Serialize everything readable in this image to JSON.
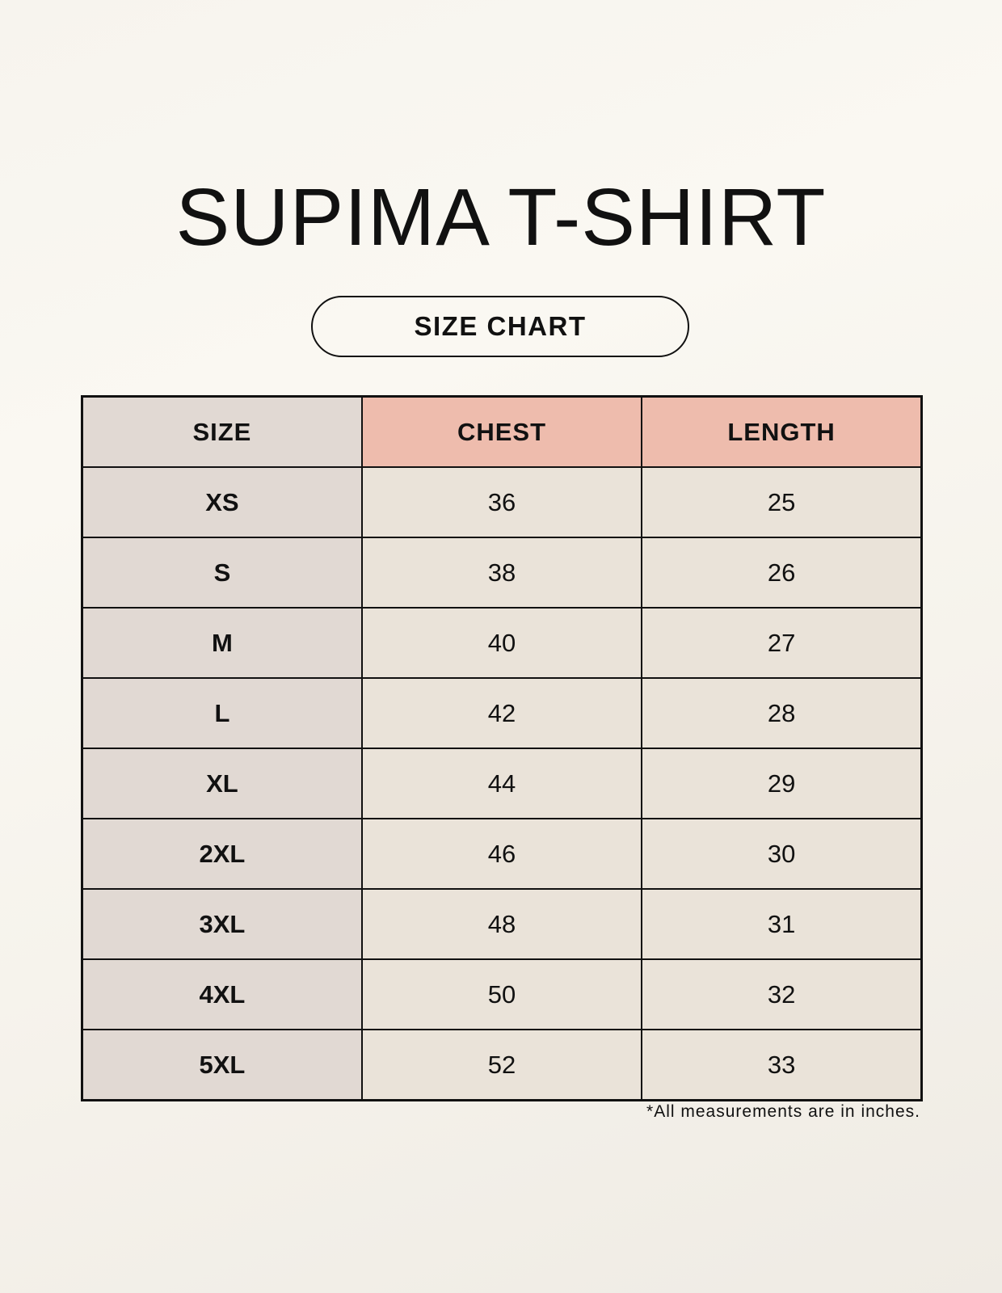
{
  "title": "SUPIMA T-SHIRT",
  "subtitle": "SIZE CHART",
  "colors": {
    "size_column": "#e1d9d3",
    "header_accent": "#eebcad",
    "value_cells": "#eae3d9"
  },
  "table": {
    "headers": [
      "SIZE",
      "CHEST",
      "LENGTH"
    ],
    "rows": [
      [
        "XS",
        "36",
        "25"
      ],
      [
        "S",
        "38",
        "26"
      ],
      [
        "M",
        "40",
        "27"
      ],
      [
        "L",
        "42",
        "28"
      ],
      [
        "XL",
        "44",
        "29"
      ],
      [
        "2XL",
        "46",
        "30"
      ],
      [
        "3XL",
        "48",
        "31"
      ],
      [
        "4XL",
        "50",
        "32"
      ],
      [
        "5XL",
        "52",
        "33"
      ]
    ]
  },
  "footnote": "*All measurements are in inches."
}
